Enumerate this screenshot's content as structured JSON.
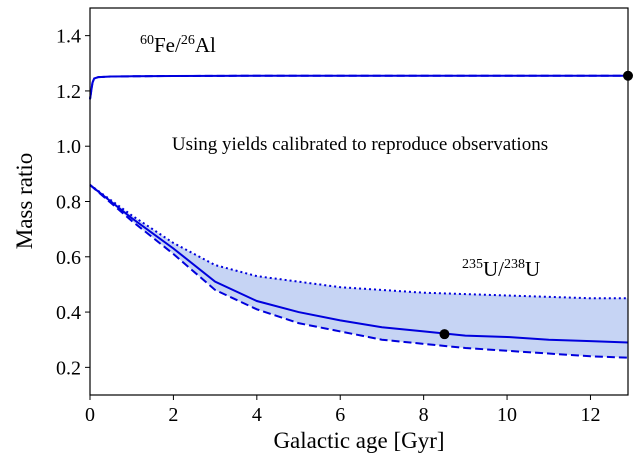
{
  "chart_data": {
    "type": "line",
    "xlabel": "Galactic age [Gyr]",
    "ylabel": "Mass ratio",
    "xlim": [
      0,
      12.9
    ],
    "ylim": [
      0.1,
      1.5
    ],
    "xticks": [
      0,
      2,
      4,
      6,
      8,
      10,
      12
    ],
    "yticks": [
      0.2,
      0.4,
      0.6,
      0.8,
      {
        "value": 1,
        "label": "1.0"
      },
      1.2,
      1.4
    ],
    "annotations": [
      {
        "parts": [
          "60",
          "Fe/",
          "26",
          "Al"
        ]
      },
      {
        "text": "Using yields calibrated to reproduce observations"
      },
      {
        "parts": [
          "235",
          "U/",
          "238",
          "U"
        ]
      }
    ],
    "series": [
      {
        "color": "#0000dd",
        "style": "solid",
        "x": [
          0,
          0.03,
          0.06,
          0.1,
          0.2,
          0.5,
          1,
          2,
          4,
          6,
          8,
          10,
          12,
          12.9
        ],
        "values": [
          1.17,
          1.2,
          1.23,
          1.245,
          1.25,
          1.252,
          1.253,
          1.254,
          1.255,
          1.255,
          1.255,
          1.255,
          1.255,
          1.255
        ]
      },
      {
        "color": "#0000dd",
        "style": "dashed",
        "x": [
          0,
          0.03,
          0.06,
          0.1,
          0.2,
          0.5,
          1,
          2,
          4,
          6,
          8,
          10,
          12,
          12.9
        ],
        "values": [
          1.17,
          1.2,
          1.23,
          1.245,
          1.25,
          1.252,
          1.253,
          1.254,
          1.255,
          1.255,
          1.255,
          1.255,
          1.255,
          1.255
        ]
      },
      {
        "color": "#0000dd",
        "style": "solid",
        "x": [
          0,
          1,
          2,
          3,
          4,
          5,
          6,
          7,
          8,
          9,
          10,
          11,
          12,
          12.9
        ],
        "values": [
          0.86,
          0.74,
          0.63,
          0.51,
          0.44,
          0.4,
          0.37,
          0.345,
          0.33,
          0.315,
          0.31,
          0.3,
          0.295,
          0.29
        ]
      },
      {
        "color": "#0000dd",
        "style": "dotted",
        "x": [
          0,
          1,
          2,
          3,
          4,
          5,
          6,
          7,
          8,
          9,
          10,
          11,
          12,
          12.9
        ],
        "values": [
          0.86,
          0.75,
          0.65,
          0.57,
          0.53,
          0.51,
          0.49,
          0.48,
          0.47,
          0.465,
          0.46,
          0.455,
          0.45,
          0.45
        ]
      },
      {
        "color": "#0000dd",
        "style": "dashed",
        "x": [
          0,
          1,
          2,
          3,
          4,
          5,
          6,
          7,
          8,
          9,
          10,
          11,
          12,
          12.9
        ],
        "values": [
          0.86,
          0.73,
          0.61,
          0.48,
          0.41,
          0.36,
          0.33,
          0.3,
          0.285,
          0.27,
          0.26,
          0.25,
          0.24,
          0.235
        ]
      }
    ],
    "fill_between": {
      "series": [
        3,
        4
      ],
      "color": "#c6d4f4"
    },
    "points": {
      "color": "#000000",
      "x": [
        12.9,
        8.5
      ],
      "y": [
        1.255,
        0.32
      ]
    }
  }
}
